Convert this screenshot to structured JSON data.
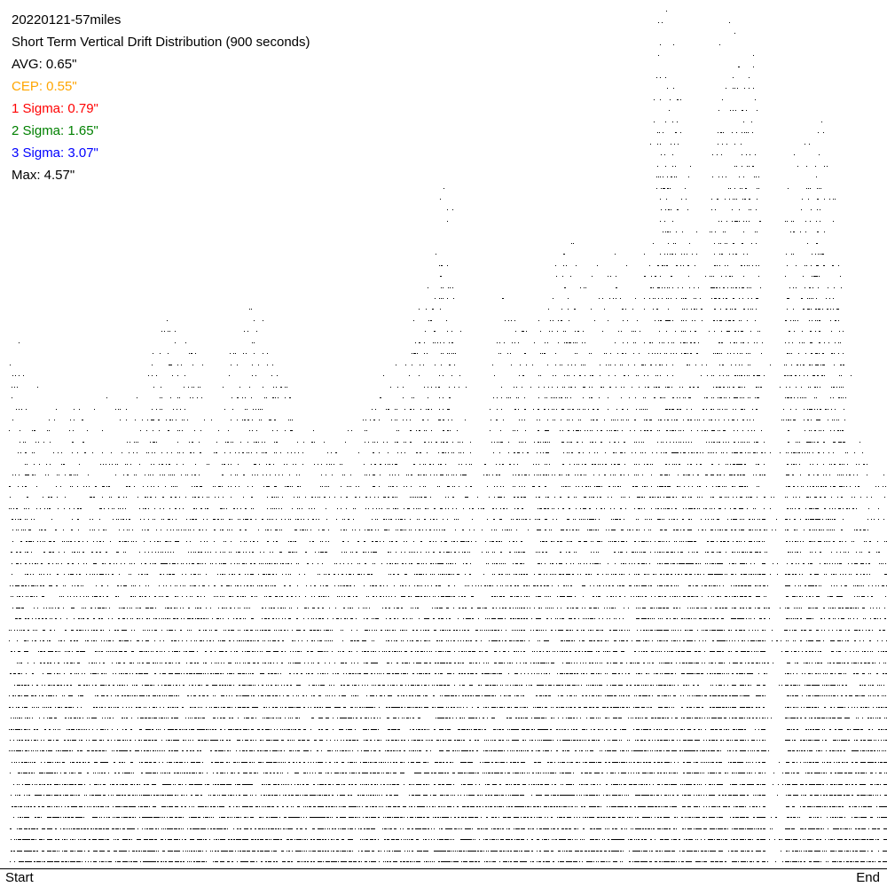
{
  "title": "20220121-57miles",
  "subtitle": "Short Term Vertical Drift Distribution (900 seconds)",
  "stats": [
    {
      "label": "AVG: 0.65\"",
      "color": "#000000"
    },
    {
      "label": "CEP: 0.55\"",
      "color": "#FFA500"
    },
    {
      "label": "1 Sigma: 0.79\"",
      "color": "#FF0000"
    },
    {
      "label": "2 Sigma: 1.65\"",
      "color": "#008000"
    },
    {
      "label": "3 Sigma: 3.07\"",
      "color": "#0000FF"
    },
    {
      "label": "Max: 4.57\"",
      "color": "#000000"
    }
  ],
  "chart_data": {
    "type": "scatter",
    "title": "Short Term Vertical Drift Distribution (900 seconds)",
    "x_start_label": "Start",
    "x_end_label": "End",
    "y_unit": "inches",
    "ylim": [
      0,
      4.6
    ],
    "grid": false,
    "dot_color": "#000000",
    "envelope_max_drift": {
      "time_percent": [
        1,
        2,
        6,
        10,
        15,
        18,
        23,
        28,
        33,
        38,
        42,
        45,
        48,
        50,
        53,
        56,
        60,
        63,
        66,
        69,
        72,
        74,
        76,
        79,
        81,
        83,
        85,
        86,
        88,
        90,
        92,
        94,
        96,
        98,
        100
      ],
      "inches": [
        2.9,
        2.6,
        2.45,
        2.45,
        2.6,
        3.1,
        2.6,
        3.1,
        2.45,
        2.3,
        2.6,
        2.8,
        3.4,
        3.8,
        2.05,
        3.2,
        3.0,
        3.4,
        3.2,
        3.4,
        3.2,
        4.57,
        4.57,
        3.0,
        4.57,
        4.57,
        4.57,
        2.6,
        3.7,
        3.9,
        4.2,
        3.6,
        2.6,
        2.2,
        2.2
      ]
    }
  }
}
